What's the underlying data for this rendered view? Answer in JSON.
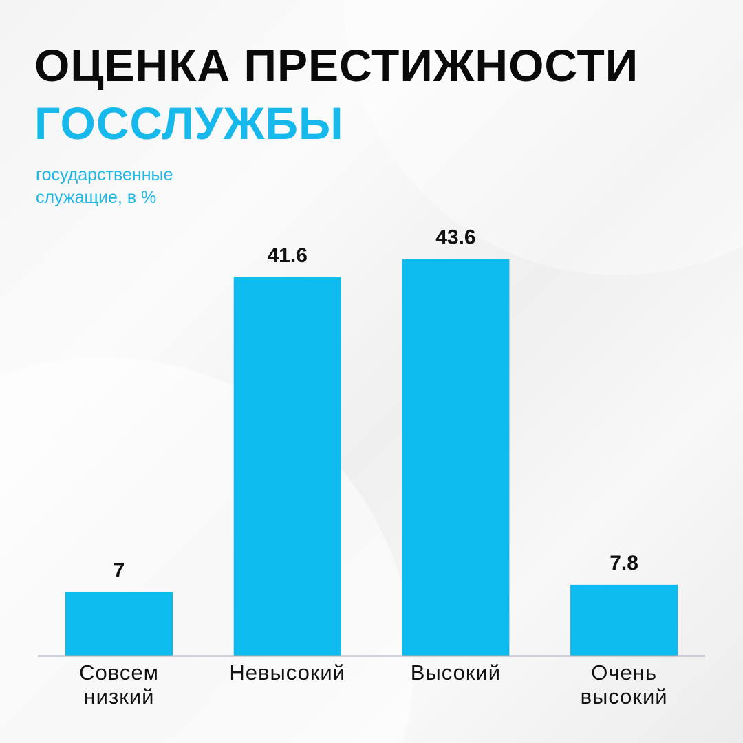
{
  "header": {
    "title_line1": "ОЦЕНКА ПРЕСТИЖНОСТИ",
    "title_line2": "ГОССЛУЖБЫ",
    "subtitle_line1": "государственные",
    "subtitle_line2": "служащие, в %"
  },
  "colors": {
    "bar": "#0dbbee",
    "title": "#0a0a0a",
    "accent": "#17b9ec",
    "axis": "#a9aab8"
  },
  "chart_data": {
    "type": "bar",
    "title": "ОЦЕНКА ПРЕСТИЖНОСТИ ГОССЛУЖБЫ",
    "ylabel": "государственные служащие, в %",
    "categories": [
      [
        "Совсем",
        "низкий"
      ],
      [
        "Невысокий"
      ],
      [
        "Высокий"
      ],
      [
        "Очень",
        "высокий"
      ]
    ],
    "values": [
      7,
      41.6,
      43.6,
      7.8
    ],
    "value_labels": [
      "7",
      "41.6",
      "43.6",
      "7.8"
    ],
    "ylim": [
      0,
      45
    ],
    "grid": false,
    "legend": "none"
  }
}
